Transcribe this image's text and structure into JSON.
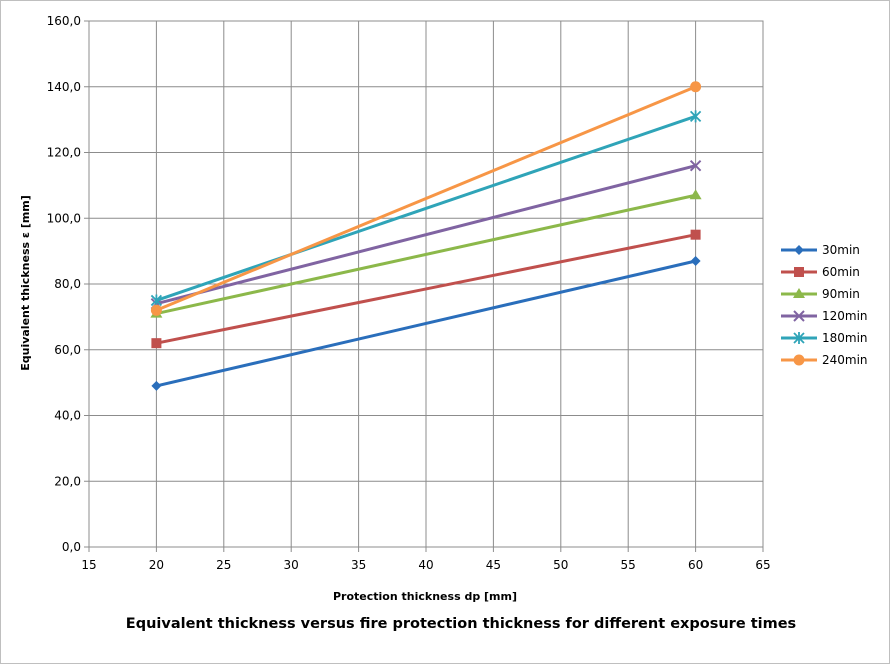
{
  "chart_data": {
    "type": "line",
    "title": "",
    "caption": "Equivalent thickness versus fire protection thickness for different exposure times",
    "xlabel": "Protection thickness dp [mm]",
    "ylabel": "Equivalent  thickness  ε [mm]",
    "xlim": [
      15,
      65
    ],
    "ylim": [
      0,
      160
    ],
    "x_ticks": [
      15,
      20,
      25,
      30,
      35,
      40,
      45,
      50,
      55,
      60,
      65
    ],
    "x_tick_labels": [
      "15",
      "20",
      "25",
      "30",
      "35",
      "40",
      "45",
      "50",
      "55",
      "60",
      "65"
    ],
    "y_ticks": [
      0,
      20,
      40,
      60,
      80,
      100,
      120,
      140,
      160
    ],
    "y_tick_labels": [
      "0,0",
      "20,0",
      "40,0",
      "60,0",
      "80,0",
      "100,0",
      "120,0",
      "140,0",
      "160,0"
    ],
    "grid": true,
    "legend_position": "right",
    "x": [
      20,
      60
    ],
    "series": [
      {
        "name": "30min",
        "values": [
          49,
          87
        ],
        "color": "#2a6ebb",
        "marker": "diamond"
      },
      {
        "name": "60min",
        "values": [
          62,
          95
        ],
        "color": "#c0504d",
        "marker": "square"
      },
      {
        "name": "90min",
        "values": [
          71,
          107
        ],
        "color": "#8cb84a",
        "marker": "triangle"
      },
      {
        "name": "120min",
        "values": [
          74,
          116
        ],
        "color": "#8064a2",
        "marker": "x"
      },
      {
        "name": "180min",
        "values": [
          75,
          131
        ],
        "color": "#2fa4b8",
        "marker": "star"
      },
      {
        "name": "240min",
        "values": [
          72,
          140
        ],
        "color": "#f79646",
        "marker": "circle"
      }
    ]
  }
}
